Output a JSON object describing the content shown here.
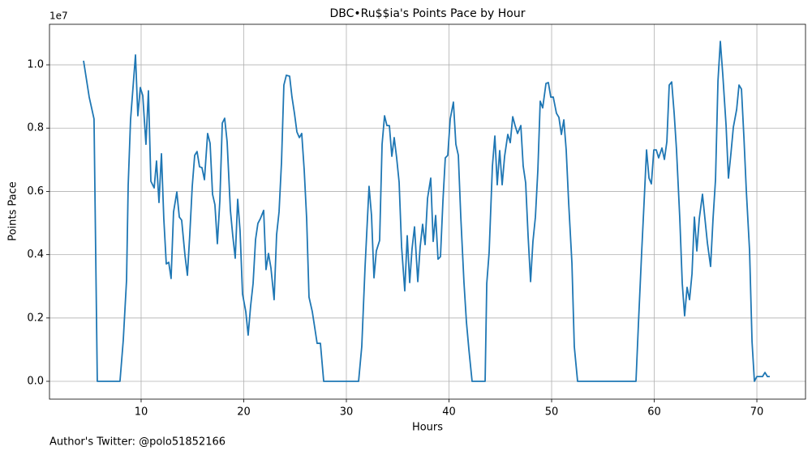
{
  "chart_data": {
    "type": "line",
    "title": "DBC•Ru$$ia's Points Pace by Hour",
    "xlabel": "Hours",
    "ylabel": "Points Pace",
    "y_offset_label": "1e7",
    "footnote": "Author's Twitter: @polo51852166",
    "color": "#1f77b4",
    "grid": true,
    "xlim": [
      1.07,
      74.74
    ],
    "ylim": [
      -563000,
      11280000
    ],
    "xticks": [
      10,
      20,
      30,
      40,
      50,
      60,
      70
    ],
    "yticks": [
      {
        "value": 0,
        "label": "0.0"
      },
      {
        "value": 2000000,
        "label": "0.2"
      },
      {
        "value": 4000000,
        "label": "0.4"
      },
      {
        "value": 6000000,
        "label": "0.6"
      },
      {
        "value": 8000000,
        "label": "0.8"
      },
      {
        "value": 10000000,
        "label": "1.0"
      }
    ],
    "x": [
      4.39,
      4.94,
      5.41,
      5.73,
      7.94,
      8.26,
      8.58,
      8.74,
      8.97,
      9.45,
      9.68,
      9.92,
      10.16,
      10.47,
      10.71,
      10.95,
      11.27,
      11.5,
      11.74,
      11.98,
      12.21,
      12.45,
      12.69,
      12.92,
      13.16,
      13.48,
      13.72,
      13.95,
      14.27,
      14.51,
      14.74,
      14.98,
      15.22,
      15.45,
      15.69,
      15.93,
      16.17,
      16.48,
      16.72,
      16.96,
      17.19,
      17.43,
      17.67,
      17.91,
      18.14,
      18.38,
      18.7,
      18.93,
      19.17,
      19.41,
      19.64,
      19.88,
      20.2,
      20.43,
      20.67,
      20.91,
      21.15,
      21.38,
      21.62,
      21.94,
      22.17,
      22.41,
      22.65,
      22.96,
      23.2,
      23.44,
      23.68,
      23.91,
      24.15,
      24.47,
      24.7,
      24.94,
      25.18,
      25.42,
      25.65,
      25.89,
      26.13,
      26.36,
      26.68,
      26.92,
      27.15,
      27.47,
      27.79,
      31.19,
      31.5,
      31.82,
      32.21,
      32.45,
      32.69,
      32.92,
      33.24,
      33.48,
      33.72,
      33.95,
      34.19,
      34.43,
      34.66,
      34.9,
      35.14,
      35.38,
      35.69,
      35.93,
      36.17,
      36.4,
      36.64,
      36.96,
      37.19,
      37.43,
      37.67,
      37.91,
      38.22,
      38.46,
      38.7,
      38.93,
      39.17,
      39.41,
      39.64,
      39.88,
      40.12,
      40.43,
      40.67,
      40.91,
      41.15,
      41.46,
      41.7,
      41.94,
      42.25,
      43.52,
      43.68,
      43.91,
      44.23,
      44.47,
      44.7,
      44.94,
      45.18,
      45.42,
      45.73,
      45.97,
      46.21,
      46.44,
      46.68,
      47.0,
      47.23,
      47.47,
      47.71,
      47.95,
      48.18,
      48.42,
      48.66,
      48.89,
      49.13,
      49.45,
      49.68,
      49.92,
      50.16,
      50.47,
      50.71,
      50.95,
      51.19,
      51.42,
      51.66,
      51.98,
      52.21,
      52.53,
      58.22,
      58.46,
      58.78,
      59.01,
      59.25,
      59.49,
      59.72,
      59.96,
      60.2,
      60.43,
      60.75,
      60.99,
      61.23,
      61.46,
      61.7,
      61.94,
      62.17,
      62.49,
      62.73,
      62.96,
      63.2,
      63.44,
      63.68,
      63.91,
      64.15,
      64.39,
      64.7,
      64.94,
      65.18,
      65.49,
      65.73,
      65.97,
      66.21,
      66.44,
      66.68,
      67.0,
      67.23,
      67.47,
      67.71,
      68.03,
      68.26,
      68.5,
      68.74,
      68.97,
      69.29,
      69.53,
      69.76,
      70.0,
      70.32,
      70.55,
      70.79,
      71.03,
      71.26
    ],
    "values": [
      10130000,
      8980000,
      8290000,
      0,
      0,
      1300000,
      3200000,
      6200000,
      8260000,
      10310000,
      8390000,
      9280000,
      9030000,
      7490000,
      9180000,
      6320000,
      6110000,
      6960000,
      5650000,
      7190000,
      5140000,
      3710000,
      3760000,
      3250000,
      5350000,
      5980000,
      5190000,
      5090000,
      3990000,
      3350000,
      4630000,
      6160000,
      7140000,
      7260000,
      6780000,
      6750000,
      6370000,
      7830000,
      7520000,
      5910000,
      5580000,
      4350000,
      5700000,
      8160000,
      8310000,
      7570000,
      5400000,
      4600000,
      3890000,
      5750000,
      4760000,
      2760000,
      2200000,
      1460000,
      2380000,
      3090000,
      4480000,
      4990000,
      5140000,
      5400000,
      3530000,
      4040000,
      3580000,
      2580000,
      4630000,
      5350000,
      6930000,
      9360000,
      9670000,
      9640000,
      8980000,
      8470000,
      7880000,
      7700000,
      7830000,
      6680000,
      5140000,
      2660000,
      2200000,
      1690000,
      1200000,
      1200000,
      0,
      0,
      1100000,
      3610000,
      6160000,
      5240000,
      3270000,
      4120000,
      4450000,
      7490000,
      8390000,
      8080000,
      8080000,
      7110000,
      7700000,
      7060000,
      6290000,
      4250000,
      2860000,
      4600000,
      3120000,
      4190000,
      4880000,
      3150000,
      4250000,
      4960000,
      4320000,
      5780000,
      6420000,
      4420000,
      5240000,
      3860000,
      3940000,
      5700000,
      7060000,
      7140000,
      8290000,
      8820000,
      7490000,
      7140000,
      5190000,
      3120000,
      1870000,
      1000000,
      0,
      0,
      3090000,
      4070000,
      6800000,
      7750000,
      6210000,
      7290000,
      6210000,
      7110000,
      7800000,
      7540000,
      8360000,
      8080000,
      7830000,
      8080000,
      6800000,
      6270000,
      4580000,
      3150000,
      4420000,
      5190000,
      6680000,
      8850000,
      8640000,
      9410000,
      9440000,
      8980000,
      8980000,
      8470000,
      8340000,
      7800000,
      8260000,
      7310000,
      5650000,
      3730000,
      1100000,
      0,
      0,
      1820000,
      4120000,
      5650000,
      7310000,
      6420000,
      6240000,
      7310000,
      7310000,
      7060000,
      7370000,
      7010000,
      7570000,
      9360000,
      9460000,
      8470000,
      7310000,
      5140000,
      3090000,
      2070000,
      2970000,
      2580000,
      3400000,
      5190000,
      4120000,
      5140000,
      5910000,
      5140000,
      4370000,
      3630000,
      5140000,
      6370000,
      9490000,
      10740000,
      9690000,
      8080000,
      6420000,
      7190000,
      8030000,
      8590000,
      9360000,
      9230000,
      7700000,
      6040000,
      4120000,
      1250000,
      0,
      150000,
      150000,
      150000,
      280000,
      150000,
      150000
    ]
  }
}
